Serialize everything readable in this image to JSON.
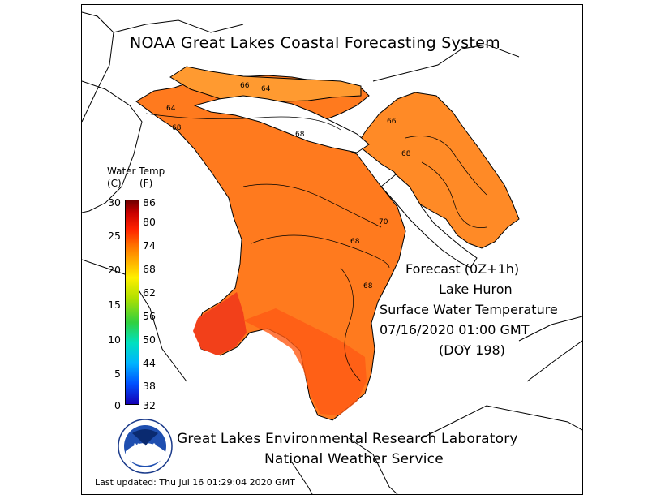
{
  "title": "NOAA Great Lakes Coastal Forecasting System",
  "forecast": {
    "line1": "Forecast (0Z+1h)",
    "line2": "Lake Huron",
    "line3": "Surface Water Temperature",
    "line4": "07/16/2020 01:00 GMT",
    "line5": "(DOY 198)"
  },
  "organization": {
    "line1": "Great Lakes Environmental Research Laboratory",
    "line2": "National Weather Service"
  },
  "last_updated": "Last updated: Thu Jul 16 01:29:04 2020 GMT",
  "legend": {
    "title": "Water Temp",
    "unit_c": "(C)",
    "unit_f": "(F)",
    "celsius_ticks": [
      "30",
      "25",
      "20",
      "15",
      "10",
      "5",
      "0"
    ],
    "fahrenheit_ticks": [
      "86",
      "80",
      "74",
      "68",
      "62",
      "56",
      "50",
      "44",
      "38",
      "32"
    ],
    "colors": {
      "low": "#1400b4",
      "mid": "#fff000",
      "high": "#700000"
    }
  },
  "logo": {
    "text": "NOAA",
    "icon": "noaa-seal-icon"
  },
  "contour_labels": [
    "64",
    "66",
    "64",
    "68",
    "68",
    "68",
    "70",
    "68",
    "68",
    "66"
  ],
  "colors": {
    "lake_main": "#ff7a1e",
    "lake_warm": "#ff4a14",
    "lake_cool": "#ff9a30",
    "land": "#ffffff",
    "shore": "#000000"
  }
}
